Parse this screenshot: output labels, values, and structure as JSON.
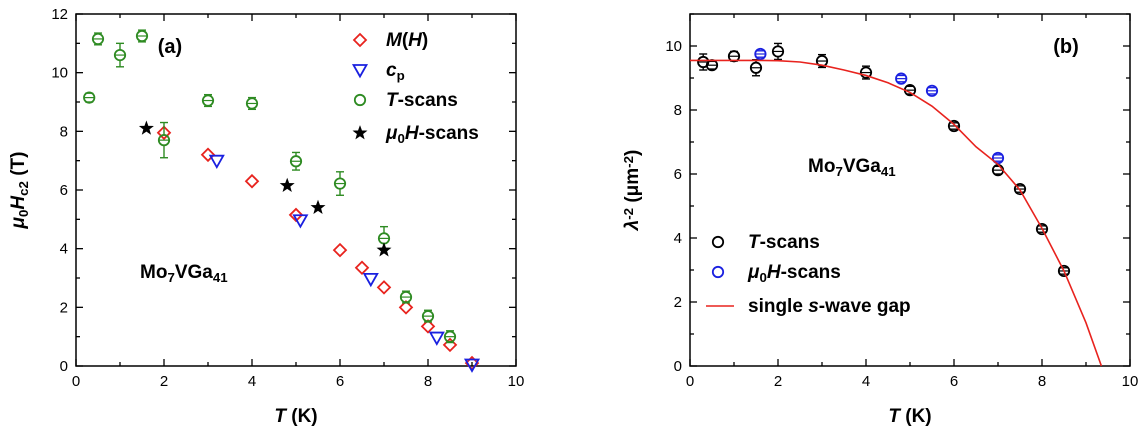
{
  "chart_data": [
    {
      "type": "scatter",
      "panel_label": "(a)",
      "annotation": {
        "parts": [
          {
            "t": "Mo"
          },
          {
            "t": "7",
            "sub": true
          },
          {
            "t": "VGa"
          },
          {
            "t": "41",
            "sub": true
          }
        ]
      },
      "xlabel": {
        "parts": [
          {
            "t": "T",
            "italic": true
          },
          {
            "t": " (K)"
          }
        ]
      },
      "ylabel": {
        "parts": [
          {
            "t": "μ",
            "italic": true
          },
          {
            "t": "0",
            "sub": true
          },
          {
            "t": "H",
            "italic": true
          },
          {
            "t": "c2",
            "sub": true
          },
          {
            "t": " (T)"
          }
        ]
      },
      "xlim": [
        0,
        10
      ],
      "ylim": [
        0,
        12
      ],
      "xticks": [
        0,
        2,
        4,
        6,
        8,
        10
      ],
      "yticks": [
        0,
        2,
        4,
        6,
        8,
        10,
        12
      ],
      "legend_position": "top-right",
      "series": [
        {
          "legend": {
            "parts": [
              {
                "t": "M",
                "italic": true
              },
              {
                "t": "("
              },
              {
                "t": "H",
                "italic": true
              },
              {
                "t": ")"
              }
            ]
          },
          "marker": "diamond",
          "color": "#e8231e",
          "x": [
            2.0,
            3.0,
            4.0,
            5.0,
            6.0,
            6.5,
            7.0,
            7.5,
            8.0,
            8.5,
            9.0
          ],
          "y": [
            7.95,
            7.2,
            6.3,
            5.15,
            3.95,
            3.35,
            2.68,
            2.0,
            1.35,
            0.72,
            0.1
          ]
        },
        {
          "legend": {
            "parts": [
              {
                "t": "c",
                "italic": true
              },
              {
                "t": "p",
                "sub": true
              }
            ]
          },
          "marker": "triangle-down",
          "color": "#1a20e0",
          "x": [
            3.2,
            5.1,
            6.7,
            8.2,
            9.0
          ],
          "y": [
            7.0,
            4.97,
            2.97,
            0.97,
            0.05
          ]
        },
        {
          "legend": {
            "parts": [
              {
                "t": "T",
                "italic": true
              },
              {
                "t": "-scans"
              }
            ]
          },
          "marker": "circle",
          "color": "#2e8b22",
          "x": [
            0.3,
            0.5,
            1.0,
            1.5,
            2.0,
            3.0,
            4.0,
            5.0,
            6.0,
            7.0,
            7.5,
            8.0,
            8.5
          ],
          "y": [
            9.15,
            11.15,
            10.6,
            11.25,
            7.7,
            9.05,
            8.95,
            6.98,
            6.22,
            4.35,
            2.35,
            1.7,
            1.0
          ],
          "err": [
            0.15,
            0.2,
            0.4,
            0.2,
            0.6,
            0.2,
            0.2,
            0.3,
            0.4,
            0.4,
            0.2,
            0.2,
            0.2
          ]
        },
        {
          "legend": {
            "parts": [
              {
                "t": "μ",
                "italic": true
              },
              {
                "t": "0",
                "sub": true
              },
              {
                "t": "H",
                "italic": true
              },
              {
                "t": "-scans"
              }
            ]
          },
          "marker": "star",
          "color": "#000000",
          "x": [
            1.6,
            4.8,
            5.5,
            7.0
          ],
          "y": [
            8.1,
            6.15,
            5.4,
            3.95
          ]
        }
      ]
    },
    {
      "type": "scatter",
      "panel_label": "(b)",
      "annotation": {
        "parts": [
          {
            "t": "Mo"
          },
          {
            "t": "7",
            "sub": true
          },
          {
            "t": "VGa"
          },
          {
            "t": "41",
            "sub": true
          }
        ]
      },
      "xlabel": {
        "parts": [
          {
            "t": "T",
            "italic": true
          },
          {
            "t": " (K)"
          }
        ]
      },
      "ylabel": {
        "parts": [
          {
            "t": "λ",
            "italic": true
          },
          {
            "t": "-2",
            "sup": true
          },
          {
            "t": " (μm"
          },
          {
            "t": "-2",
            "sup": true
          },
          {
            "t": ")"
          }
        ]
      },
      "xlim": [
        0,
        10
      ],
      "ylim": [
        0,
        11
      ],
      "xticks": [
        0,
        2,
        4,
        6,
        8,
        10
      ],
      "yticks": [
        0,
        2,
        4,
        6,
        8,
        10
      ],
      "legend_position": "bottom-left",
      "series": [
        {
          "legend": {
            "parts": [
              {
                "t": "T",
                "italic": true
              },
              {
                "t": "-scans"
              }
            ]
          },
          "marker": "circle",
          "color": "#000000",
          "x": [
            0.3,
            0.5,
            1.0,
            1.5,
            2.0,
            3.0,
            4.0,
            5.0,
            6.0,
            7.0,
            7.5,
            8.0,
            8.5
          ],
          "y": [
            9.5,
            9.4,
            9.68,
            9.32,
            9.83,
            9.53,
            9.17,
            8.62,
            7.5,
            6.12,
            5.53,
            4.28,
            2.97
          ],
          "err": [
            0.25,
            0.12,
            0.15,
            0.25,
            0.25,
            0.2,
            0.2,
            0.12,
            0.1,
            0.12,
            0.1,
            0.1,
            0.1
          ]
        },
        {
          "legend": {
            "parts": [
              {
                "t": "μ",
                "italic": true
              },
              {
                "t": "0",
                "sub": true
              },
              {
                "t": "H",
                "italic": true
              },
              {
                "t": "-scans"
              }
            ]
          },
          "marker": "circle",
          "color": "#1a20e0",
          "x": [
            1.6,
            4.8,
            5.5,
            7.0
          ],
          "y": [
            9.75,
            8.98,
            8.6,
            6.5
          ],
          "err": [
            0.1,
            0.1,
            0.1,
            0.1
          ]
        },
        {
          "legend": {
            "parts": [
              {
                "t": "single "
              },
              {
                "t": "s",
                "italic": true
              },
              {
                "t": "-wave gap"
              }
            ]
          },
          "marker": "line",
          "color": "#e8231e",
          "x": [
            0.0,
            0.5,
            1.0,
            1.5,
            2.0,
            2.5,
            3.0,
            3.5,
            4.0,
            4.5,
            5.0,
            5.5,
            6.0,
            6.5,
            7.0,
            7.5,
            8.0,
            8.5,
            9.0,
            9.35
          ],
          "y": [
            9.55,
            9.55,
            9.55,
            9.55,
            9.54,
            9.5,
            9.4,
            9.25,
            9.08,
            8.85,
            8.55,
            8.12,
            7.55,
            6.85,
            6.3,
            5.5,
            4.3,
            2.97,
            1.35,
            0.0
          ]
        }
      ]
    }
  ]
}
